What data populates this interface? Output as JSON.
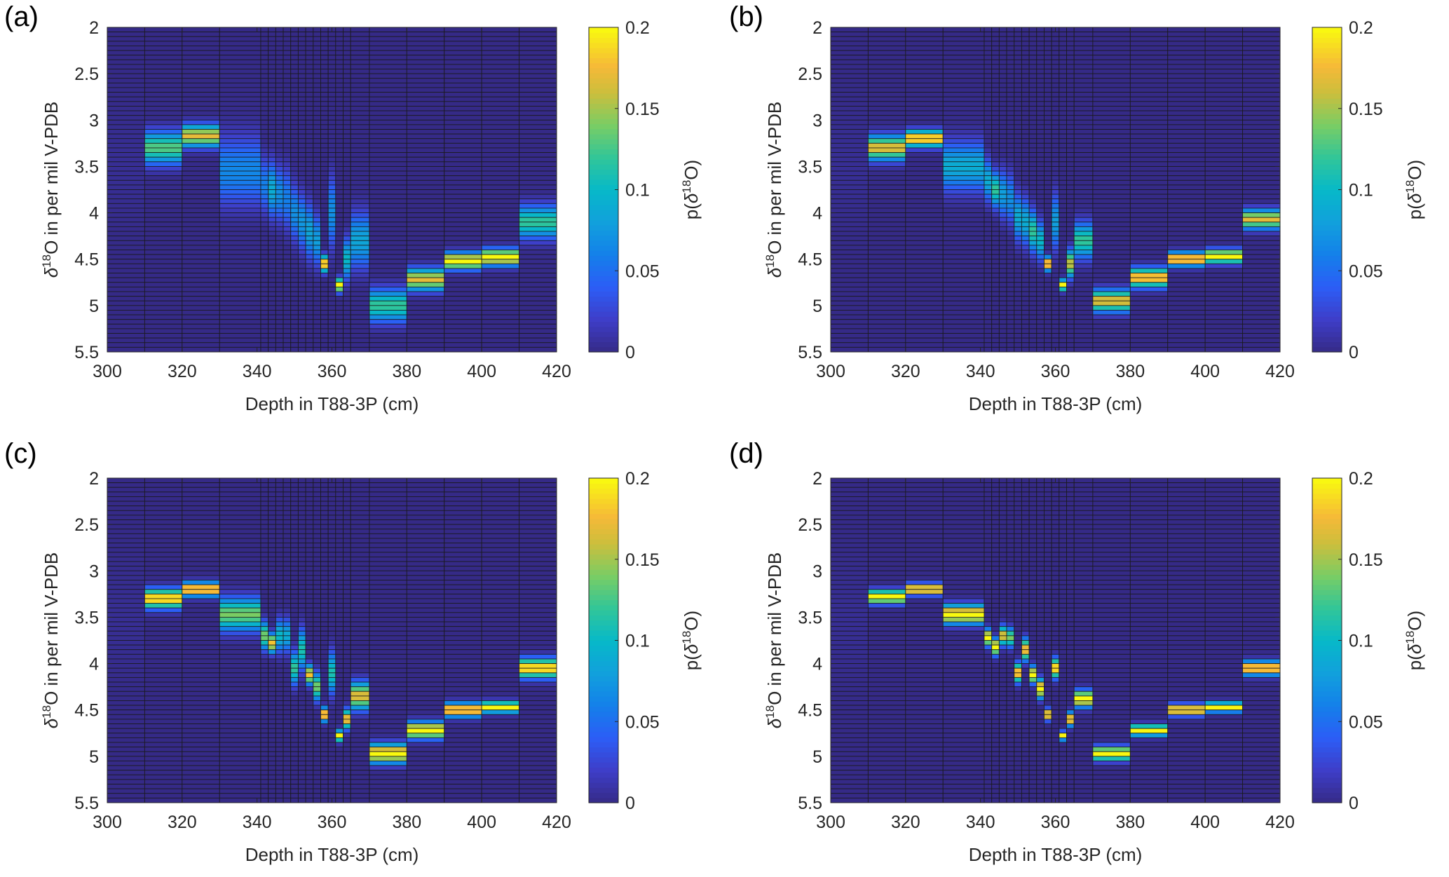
{
  "figure": {
    "panel_labels": [
      "(a)",
      "(b)",
      "(c)",
      "(d)"
    ]
  },
  "chart_data": [
    {
      "type": "heatmap",
      "panel": "(a)",
      "xlabel": "Depth in T88-3P (cm)",
      "ylabel_main": "O in per mil V-PDB",
      "ylabel_prefix": "δ",
      "ylabel_sup": "18",
      "colorbar_label": "p(δ18O)",
      "xlim": [
        300,
        420
      ],
      "ylim": [
        2,
        5.5
      ],
      "y_reversed": true,
      "xticks": [
        300,
        320,
        340,
        360,
        380,
        400,
        420
      ],
      "yticks": [
        2,
        2.5,
        3,
        3.5,
        4,
        4.5,
        5,
        5.5
      ],
      "clim": [
        0,
        0.2
      ],
      "cticks": [
        0,
        0.05,
        0.1,
        0.15,
        0.2
      ],
      "colormap": "parula",
      "y_bin_width": 0.05,
      "depth_edges": [
        300,
        310,
        320,
        330,
        341,
        343,
        345,
        347,
        349,
        351,
        353,
        355,
        357,
        359,
        361,
        363,
        365,
        370,
        380,
        390,
        400,
        410,
        420
      ],
      "columns": [
        {
          "mean": 3.5,
          "sd": 0.2,
          "peak": 0
        },
        {
          "mean": 3.3,
          "sd": 0.12,
          "peak": 0.13
        },
        {
          "mean": 3.17,
          "sd": 0.08,
          "peak": 0.17
        },
        {
          "mean": 3.55,
          "sd": 0.25,
          "peak": 0.065
        },
        {
          "mean": 3.7,
          "sd": 0.2,
          "peak": 0.06
        },
        {
          "mean": 3.75,
          "sd": 0.2,
          "peak": 0.09
        },
        {
          "mean": 3.8,
          "sd": 0.2,
          "peak": 0.07
        },
        {
          "mean": 3.85,
          "sd": 0.22,
          "peak": 0.06
        },
        {
          "mean": 4.0,
          "sd": 0.2,
          "peak": 0.07
        },
        {
          "mean": 4.1,
          "sd": 0.2,
          "peak": 0.075
        },
        {
          "mean": 4.2,
          "sd": 0.2,
          "peak": 0.085
        },
        {
          "mean": 4.3,
          "sd": 0.18,
          "peak": 0.08
        },
        {
          "mean": 4.55,
          "sd": 0.06,
          "peak": 0.2
        },
        {
          "mean": 4.0,
          "sd": 0.25,
          "peak": 0.07
        },
        {
          "mean": 4.78,
          "sd": 0.05,
          "peak": 0.2
        },
        {
          "mean": 4.5,
          "sd": 0.15,
          "peak": 0.1
        },
        {
          "mean": 4.3,
          "sd": 0.2,
          "peak": 0.085
        },
        {
          "mean": 5.0,
          "sd": 0.12,
          "peak": 0.12
        },
        {
          "mean": 4.72,
          "sd": 0.08,
          "peak": 0.17
        },
        {
          "mean": 4.52,
          "sd": 0.06,
          "peak": 0.2
        },
        {
          "mean": 4.48,
          "sd": 0.06,
          "peak": 0.2
        },
        {
          "mean": 4.1,
          "sd": 0.12,
          "peak": 0.12
        }
      ]
    },
    {
      "type": "heatmap",
      "panel": "(b)",
      "xlabel": "Depth in T88-3P (cm)",
      "ylabel_main": "O in per mil V-PDB",
      "ylabel_prefix": "δ",
      "ylabel_sup": "18",
      "colorbar_label": "p(δ18O)",
      "xlim": [
        300,
        420
      ],
      "ylim": [
        2,
        5.5
      ],
      "y_reversed": true,
      "xticks": [
        300,
        320,
        340,
        360,
        380,
        400,
        420
      ],
      "yticks": [
        2,
        2.5,
        3,
        3.5,
        4,
        4.5,
        5,
        5.5
      ],
      "clim": [
        0,
        0.2
      ],
      "cticks": [
        0,
        0.05,
        0.1,
        0.15,
        0.2
      ],
      "colormap": "parula",
      "y_bin_width": 0.05,
      "depth_edges": [
        300,
        310,
        320,
        330,
        341,
        343,
        345,
        347,
        349,
        351,
        353,
        355,
        357,
        359,
        361,
        363,
        365,
        370,
        380,
        390,
        400,
        410,
        420
      ],
      "columns": [
        {
          "mean": 3.5,
          "sd": 0.2,
          "peak": 0
        },
        {
          "mean": 3.3,
          "sd": 0.09,
          "peak": 0.17
        },
        {
          "mean": 3.2,
          "sd": 0.06,
          "peak": 0.2
        },
        {
          "mean": 3.5,
          "sd": 0.18,
          "peak": 0.09
        },
        {
          "mean": 3.65,
          "sd": 0.15,
          "peak": 0.09
        },
        {
          "mean": 3.75,
          "sd": 0.13,
          "peak": 0.12
        },
        {
          "mean": 3.8,
          "sd": 0.17,
          "peak": 0.08
        },
        {
          "mean": 3.85,
          "sd": 0.18,
          "peak": 0.07
        },
        {
          "mean": 4.05,
          "sd": 0.17,
          "peak": 0.09
        },
        {
          "mean": 4.1,
          "sd": 0.17,
          "peak": 0.09
        },
        {
          "mean": 4.2,
          "sd": 0.15,
          "peak": 0.12
        },
        {
          "mean": 4.3,
          "sd": 0.14,
          "peak": 0.1
        },
        {
          "mean": 4.55,
          "sd": 0.05,
          "peak": 0.2
        },
        {
          "mean": 4.1,
          "sd": 0.2,
          "peak": 0.08
        },
        {
          "mean": 4.78,
          "sd": 0.04,
          "peak": 0.2
        },
        {
          "mean": 4.55,
          "sd": 0.1,
          "peak": 0.16
        },
        {
          "mean": 4.3,
          "sd": 0.13,
          "peak": 0.12
        },
        {
          "mean": 4.95,
          "sd": 0.08,
          "peak": 0.17
        },
        {
          "mean": 4.7,
          "sd": 0.07,
          "peak": 0.19
        },
        {
          "mean": 4.5,
          "sd": 0.05,
          "peak": 0.2
        },
        {
          "mean": 4.47,
          "sd": 0.05,
          "peak": 0.2
        },
        {
          "mean": 4.07,
          "sd": 0.07,
          "peak": 0.17
        }
      ]
    },
    {
      "type": "heatmap",
      "panel": "(c)",
      "xlabel": "Depth in T88-3P (cm)",
      "ylabel_main": "O in per mil V-PDB",
      "ylabel_prefix": "δ",
      "ylabel_sup": "18",
      "colorbar_label": "p(δ18O)",
      "xlim": [
        300,
        420
      ],
      "ylim": [
        2,
        5.5
      ],
      "y_reversed": true,
      "xticks": [
        300,
        320,
        340,
        360,
        380,
        400,
        420
      ],
      "yticks": [
        2,
        2.5,
        3,
        3.5,
        4,
        4.5,
        5,
        5.5
      ],
      "clim": [
        0,
        0.2
      ],
      "cticks": [
        0,
        0.05,
        0.1,
        0.15,
        0.2
      ],
      "colormap": "parula",
      "y_bin_width": 0.05,
      "depth_edges": [
        300,
        310,
        320,
        330,
        341,
        343,
        345,
        347,
        349,
        351,
        353,
        355,
        357,
        359,
        361,
        363,
        365,
        370,
        380,
        390,
        400,
        410,
        420
      ],
      "columns": [
        {
          "mean": 3.5,
          "sd": 0.2,
          "peak": 0
        },
        {
          "mean": 3.3,
          "sd": 0.07,
          "peak": 0.2
        },
        {
          "mean": 3.2,
          "sd": 0.05,
          "peak": 0.2
        },
        {
          "mean": 3.47,
          "sd": 0.12,
          "peak": 0.14
        },
        {
          "mean": 3.7,
          "sd": 0.1,
          "peak": 0.14
        },
        {
          "mean": 3.78,
          "sd": 0.07,
          "peak": 0.18
        },
        {
          "mean": 3.7,
          "sd": 0.12,
          "peak": 0.1
        },
        {
          "mean": 3.7,
          "sd": 0.12,
          "peak": 0.09
        },
        {
          "mean": 4.05,
          "sd": 0.12,
          "peak": 0.12
        },
        {
          "mean": 3.85,
          "sd": 0.15,
          "peak": 0.11
        },
        {
          "mean": 4.12,
          "sd": 0.07,
          "peak": 0.18
        },
        {
          "mean": 4.25,
          "sd": 0.1,
          "peak": 0.14
        },
        {
          "mean": 4.55,
          "sd": 0.05,
          "peak": 0.2
        },
        {
          "mean": 4.1,
          "sd": 0.15,
          "peak": 0.11
        },
        {
          "mean": 4.78,
          "sd": 0.04,
          "peak": 0.2
        },
        {
          "mean": 4.6,
          "sd": 0.07,
          "peak": 0.18
        },
        {
          "mean": 4.35,
          "sd": 0.1,
          "peak": 0.17
        },
        {
          "mean": 4.97,
          "sd": 0.07,
          "peak": 0.2
        },
        {
          "mean": 4.72,
          "sd": 0.06,
          "peak": 0.2
        },
        {
          "mean": 4.5,
          "sd": 0.05,
          "peak": 0.2
        },
        {
          "mean": 4.47,
          "sd": 0.04,
          "peak": 0.2
        },
        {
          "mean": 4.05,
          "sd": 0.07,
          "peak": 0.2
        }
      ]
    },
    {
      "type": "heatmap",
      "panel": "(d)",
      "xlabel": "Depth in T88-3P (cm)",
      "ylabel_main": "O in per mil V-PDB",
      "ylabel_prefix": "δ",
      "ylabel_sup": "18",
      "colorbar_label": "p(δ18O)",
      "xlim": [
        300,
        420
      ],
      "ylim": [
        2,
        5.5
      ],
      "y_reversed": true,
      "xticks": [
        300,
        320,
        340,
        360,
        380,
        400,
        420
      ],
      "yticks": [
        2,
        2.5,
        3,
        3.5,
        4,
        4.5,
        5,
        5.5
      ],
      "clim": [
        0,
        0.2
      ],
      "cticks": [
        0,
        0.05,
        0.1,
        0.15,
        0.2
      ],
      "colormap": "parula",
      "y_bin_width": 0.05,
      "depth_edges": [
        300,
        310,
        320,
        330,
        341,
        343,
        345,
        347,
        349,
        351,
        353,
        355,
        357,
        359,
        361,
        363,
        365,
        370,
        380,
        390,
        400,
        410,
        420
      ],
      "columns": [
        {
          "mean": 3.5,
          "sd": 0.2,
          "peak": 0
        },
        {
          "mean": 3.28,
          "sd": 0.05,
          "peak": 0.2
        },
        {
          "mean": 3.2,
          "sd": 0.04,
          "peak": 0.2
        },
        {
          "mean": 3.47,
          "sd": 0.07,
          "peak": 0.2
        },
        {
          "mean": 3.72,
          "sd": 0.06,
          "peak": 0.2
        },
        {
          "mean": 3.82,
          "sd": 0.06,
          "peak": 0.2
        },
        {
          "mean": 3.7,
          "sd": 0.07,
          "peak": 0.17
        },
        {
          "mean": 3.72,
          "sd": 0.07,
          "peak": 0.14
        },
        {
          "mean": 4.1,
          "sd": 0.07,
          "peak": 0.19
        },
        {
          "mean": 3.85,
          "sd": 0.08,
          "peak": 0.18
        },
        {
          "mean": 4.12,
          "sd": 0.06,
          "peak": 0.2
        },
        {
          "mean": 4.27,
          "sd": 0.07,
          "peak": 0.2
        },
        {
          "mean": 4.55,
          "sd": 0.04,
          "peak": 0.2
        },
        {
          "mean": 4.05,
          "sd": 0.07,
          "peak": 0.2
        },
        {
          "mean": 4.78,
          "sd": 0.03,
          "peak": 0.2
        },
        {
          "mean": 4.6,
          "sd": 0.05,
          "peak": 0.19
        },
        {
          "mean": 4.38,
          "sd": 0.06,
          "peak": 0.2
        },
        {
          "mean": 4.97,
          "sd": 0.05,
          "peak": 0.2
        },
        {
          "mean": 4.72,
          "sd": 0.04,
          "peak": 0.2
        },
        {
          "mean": 4.5,
          "sd": 0.04,
          "peak": 0.2
        },
        {
          "mean": 4.47,
          "sd": 0.035,
          "peak": 0.2
        },
        {
          "mean": 4.05,
          "sd": 0.05,
          "peak": 0.2
        }
      ]
    }
  ]
}
